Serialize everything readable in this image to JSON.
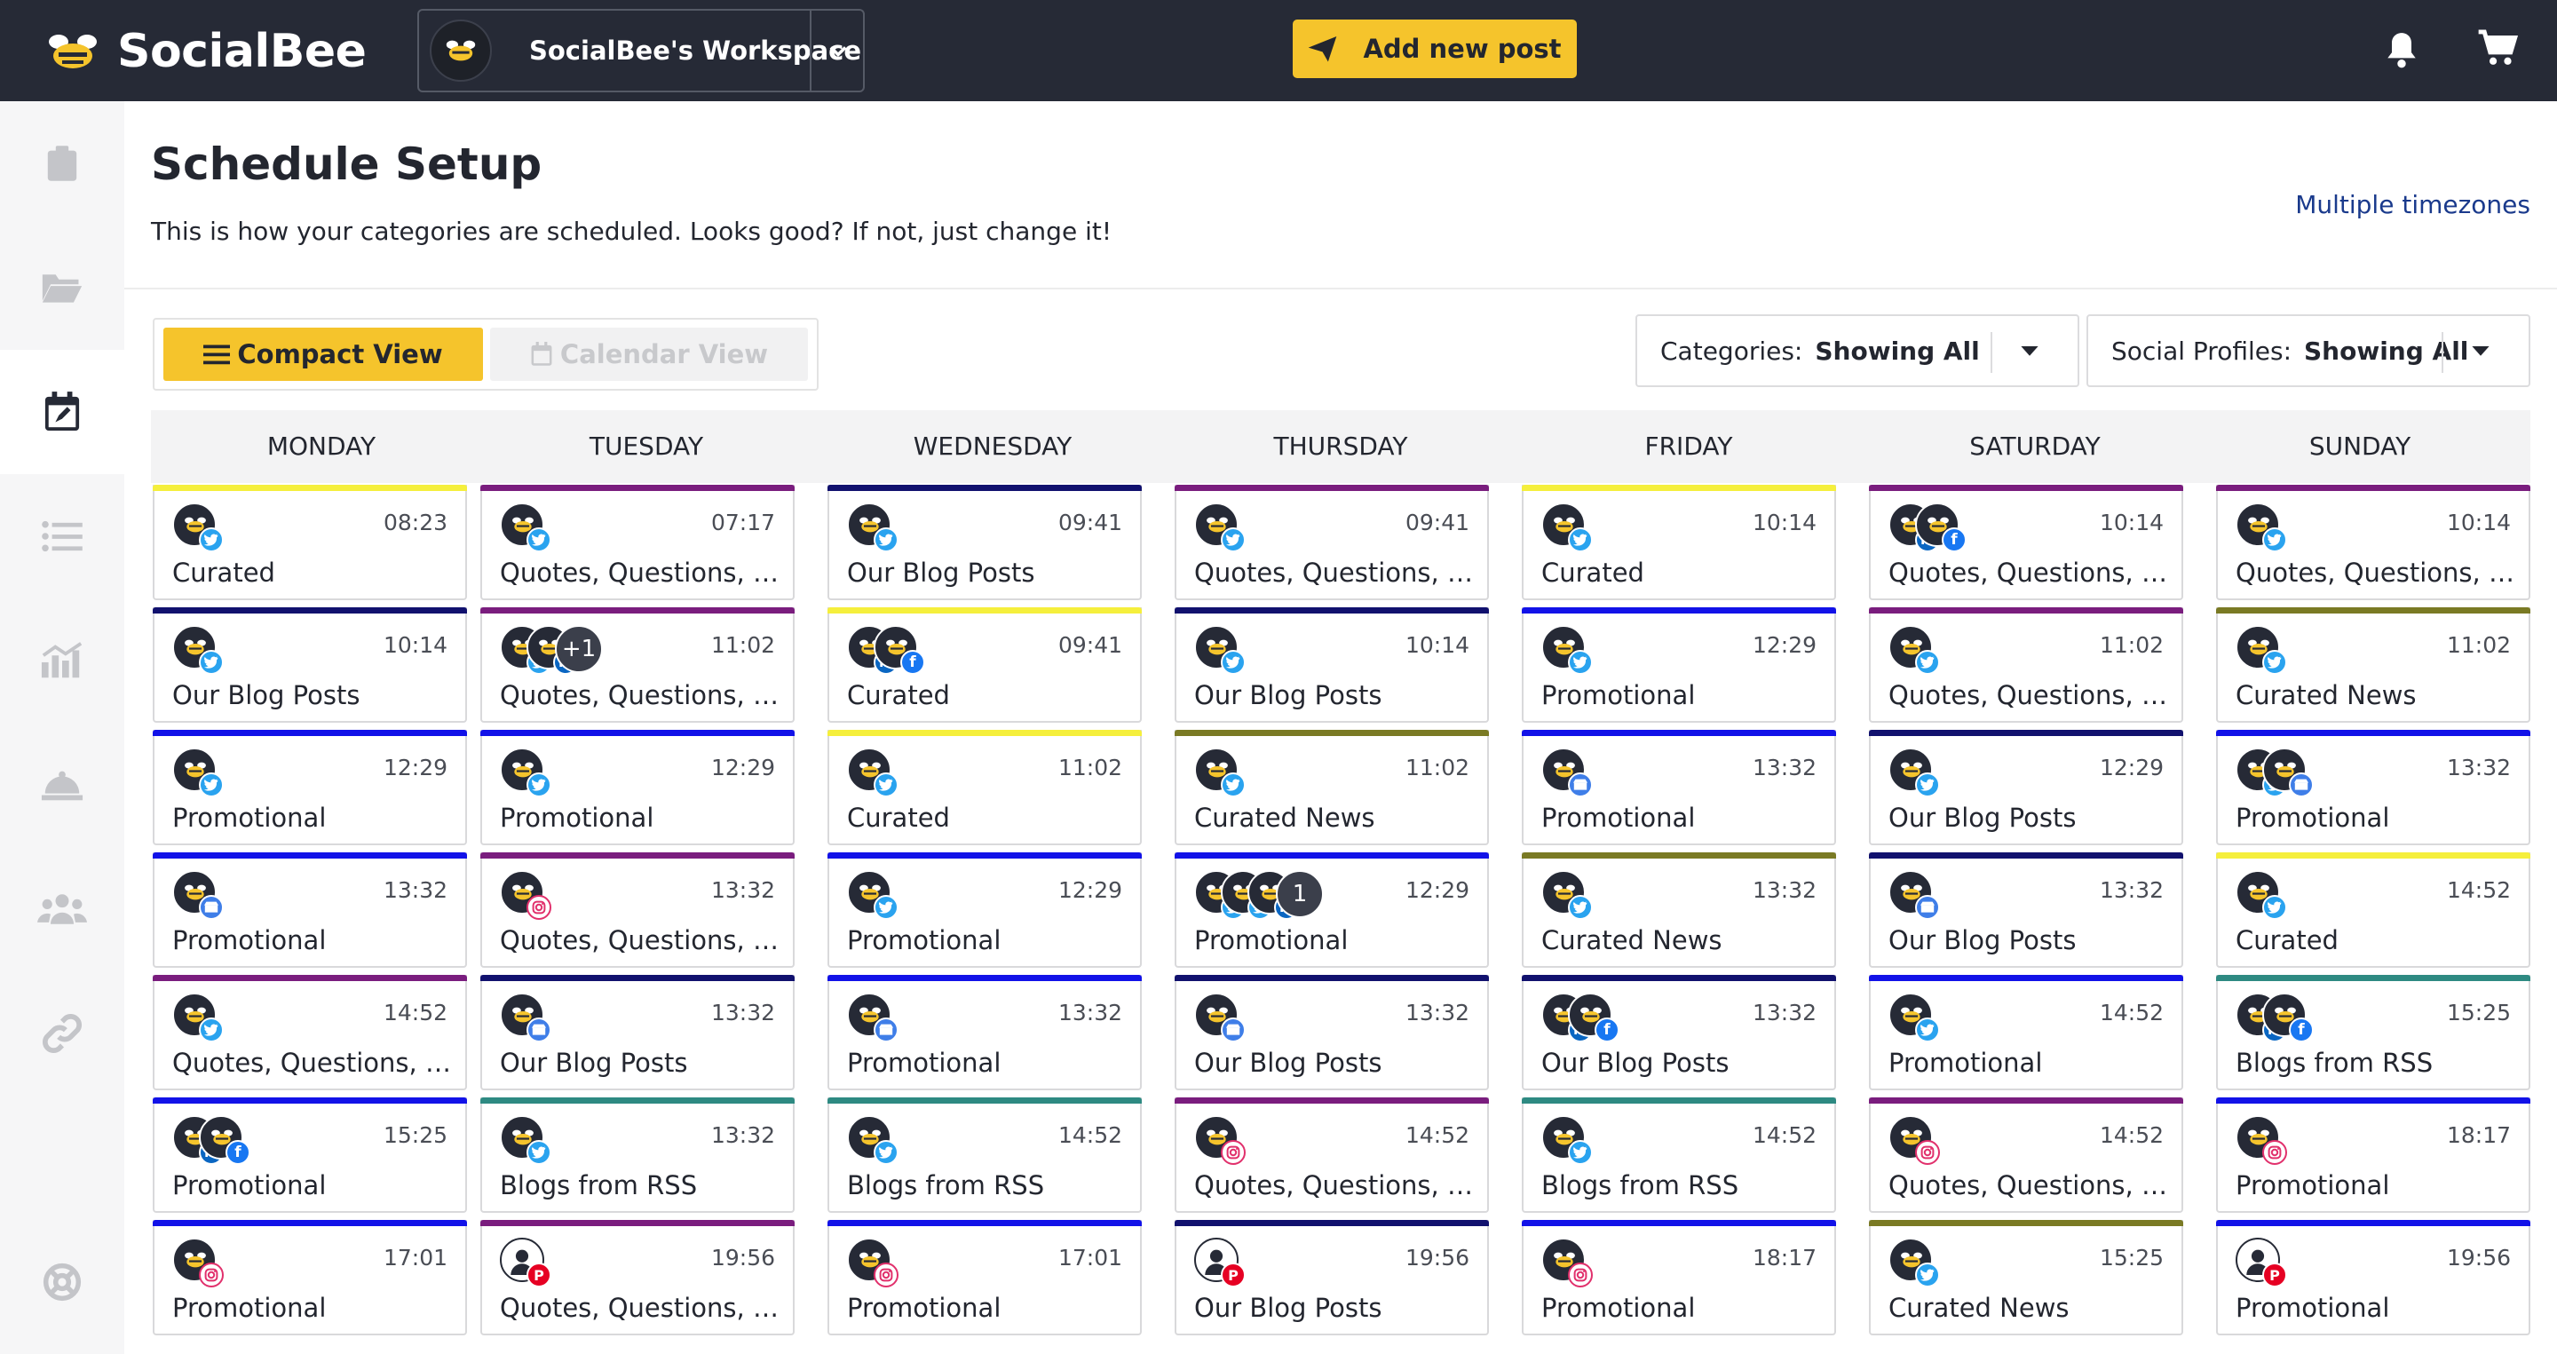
{
  "app": {
    "brand": "SocialBee",
    "workspace": "SocialBee's Workspace",
    "add_post": "Add new post"
  },
  "header": {
    "title": "Schedule Setup",
    "subtitle": "This is how your categories are scheduled. Looks good? If not, just change it!",
    "timezones_link": "Multiple timezones"
  },
  "views": {
    "compact": "Compact View",
    "calendar": "Calendar View"
  },
  "filters": {
    "categories_label": "Categories:",
    "categories_value": "Showing All",
    "profiles_label": "Social Profiles:",
    "profiles_value": "Showing All"
  },
  "sidebar_icons": [
    "clipboard-icon",
    "folder-icon",
    "calendar-edit-icon",
    "list-icon",
    "analytics-icon",
    "concierge-bell-icon",
    "users-icon",
    "link-icon",
    "help-lifebuoy-icon"
  ],
  "colors": {
    "accent": "#f5c42c",
    "topbar": "#262a36",
    "curated": "#f5ef3c",
    "quotes": "#7a1d7e",
    "blog": "#11116e",
    "promotional": "#1212e8",
    "curated_news": "#7a7a24",
    "rss": "#2e8a82"
  },
  "days": [
    "MONDAY",
    "TUESDAY",
    "WEDNESDAY",
    "THURSDAY",
    "FRIDAY",
    "SATURDAY",
    "SUNDAY"
  ],
  "schedule": [
    [
      {
        "time": "08:23",
        "category": "Curated",
        "color": "#f5ef3c",
        "profiles": [
          "twitter"
        ]
      },
      {
        "time": "10:14",
        "category": "Our Blog Posts",
        "color": "#11116e",
        "profiles": [
          "twitter"
        ]
      },
      {
        "time": "12:29",
        "category": "Promotional",
        "color": "#1212e8",
        "profiles": [
          "twitter"
        ]
      },
      {
        "time": "13:32",
        "category": "Promotional",
        "color": "#1212e8",
        "profiles": [
          "gmb"
        ]
      },
      {
        "time": "14:52",
        "category": "Quotes, Questions, and Tips",
        "color": "#7a1d7e",
        "profiles": [
          "twitter"
        ]
      },
      {
        "time": "15:25",
        "category": "Promotional",
        "color": "#1212e8",
        "profiles": [
          "linkedin",
          "facebook"
        ]
      },
      {
        "time": "17:01",
        "category": "Promotional",
        "color": "#1212e8",
        "profiles": [
          "instagram"
        ]
      }
    ],
    [
      {
        "time": "07:17",
        "category": "Quotes, Questions, and Tips",
        "color": "#7a1d7e",
        "profiles": [
          "twitter"
        ]
      },
      {
        "time": "11:02",
        "category": "Quotes, Questions, and Tips",
        "color": "#7a1d7e",
        "profiles": [
          "twitter",
          "linkedin"
        ],
        "more": "+1"
      },
      {
        "time": "12:29",
        "category": "Promotional",
        "color": "#1212e8",
        "profiles": [
          "twitter"
        ]
      },
      {
        "time": "13:32",
        "category": "Quotes, Questions, and Tips",
        "color": "#7a1d7e",
        "profiles": [
          "instagram"
        ]
      },
      {
        "time": "13:32",
        "category": "Our Blog Posts",
        "color": "#11116e",
        "profiles": [
          "gmb"
        ]
      },
      {
        "time": "13:32",
        "category": "Blogs from RSS",
        "color": "#2e8a82",
        "profiles": [
          "twitter"
        ]
      },
      {
        "time": "19:56",
        "category": "Quotes, Questions, and Tips",
        "color": "#7a1d7e",
        "profiles": [
          "pinterest"
        ]
      }
    ],
    [
      {
        "time": "09:41",
        "category": "Our Blog Posts",
        "color": "#11116e",
        "profiles": [
          "twitter"
        ]
      },
      {
        "time": "09:41",
        "category": "Curated",
        "color": "#f5ef3c",
        "profiles": [
          "linkedin",
          "facebook"
        ]
      },
      {
        "time": "11:02",
        "category": "Curated",
        "color": "#f5ef3c",
        "profiles": [
          "twitter"
        ]
      },
      {
        "time": "12:29",
        "category": "Promotional",
        "color": "#1212e8",
        "profiles": [
          "twitter"
        ]
      },
      {
        "time": "13:32",
        "category": "Promotional",
        "color": "#1212e8",
        "profiles": [
          "gmb"
        ]
      },
      {
        "time": "14:52",
        "category": "Blogs from RSS",
        "color": "#2e8a82",
        "profiles": [
          "twitter"
        ]
      },
      {
        "time": "17:01",
        "category": "Promotional",
        "color": "#1212e8",
        "profiles": [
          "instagram"
        ]
      }
    ],
    [
      {
        "time": "09:41",
        "category": "Quotes, Questions, and Tips",
        "color": "#7a1d7e",
        "profiles": [
          "twitter"
        ]
      },
      {
        "time": "10:14",
        "category": "Our Blog Posts",
        "color": "#11116e",
        "profiles": [
          "twitter"
        ]
      },
      {
        "time": "11:02",
        "category": "Curated News",
        "color": "#7a7a24",
        "profiles": [
          "twitter"
        ]
      },
      {
        "time": "12:29",
        "category": "Promotional",
        "color": "#1212e8",
        "profiles": [
          "twitter",
          "twitter",
          "linkedin"
        ],
        "more": "1"
      },
      {
        "time": "13:32",
        "category": "Our Blog Posts",
        "color": "#11116e",
        "profiles": [
          "gmb"
        ]
      },
      {
        "time": "14:52",
        "category": "Quotes, Questions, and Tips",
        "color": "#7a1d7e",
        "profiles": [
          "instagram"
        ]
      },
      {
        "time": "19:56",
        "category": "Our Blog Posts",
        "color": "#11116e",
        "profiles": [
          "pinterest"
        ]
      }
    ],
    [
      {
        "time": "10:14",
        "category": "Curated",
        "color": "#f5ef3c",
        "profiles": [
          "twitter"
        ]
      },
      {
        "time": "12:29",
        "category": "Promotional",
        "color": "#1212e8",
        "profiles": [
          "twitter"
        ]
      },
      {
        "time": "13:32",
        "category": "Promotional",
        "color": "#1212e8",
        "profiles": [
          "gmb"
        ]
      },
      {
        "time": "13:32",
        "category": "Curated News",
        "color": "#7a7a24",
        "profiles": [
          "twitter"
        ]
      },
      {
        "time": "13:32",
        "category": "Our Blog Posts",
        "color": "#11116e",
        "profiles": [
          "linkedin",
          "facebook"
        ]
      },
      {
        "time": "14:52",
        "category": "Blogs from RSS",
        "color": "#2e8a82",
        "profiles": [
          "twitter"
        ]
      },
      {
        "time": "18:17",
        "category": "Promotional",
        "color": "#1212e8",
        "profiles": [
          "instagram"
        ]
      }
    ],
    [
      {
        "time": "10:14",
        "category": "Quotes, Questions, and Tips",
        "color": "#7a1d7e",
        "profiles": [
          "linkedin",
          "facebook"
        ]
      },
      {
        "time": "11:02",
        "category": "Quotes, Questions, and Tips",
        "color": "#7a1d7e",
        "profiles": [
          "twitter"
        ]
      },
      {
        "time": "12:29",
        "category": "Our Blog Posts",
        "color": "#11116e",
        "profiles": [
          "twitter"
        ]
      },
      {
        "time": "13:32",
        "category": "Our Blog Posts",
        "color": "#11116e",
        "profiles": [
          "gmb"
        ]
      },
      {
        "time": "14:52",
        "category": "Promotional",
        "color": "#1212e8",
        "profiles": [
          "twitter"
        ]
      },
      {
        "time": "14:52",
        "category": "Quotes, Questions, and Tips",
        "color": "#7a1d7e",
        "profiles": [
          "instagram"
        ]
      },
      {
        "time": "15:25",
        "category": "Curated News",
        "color": "#7a7a24",
        "profiles": [
          "twitter"
        ]
      }
    ],
    [
      {
        "time": "10:14",
        "category": "Quotes, Questions, and Tips",
        "color": "#7a1d7e",
        "profiles": [
          "twitter"
        ]
      },
      {
        "time": "11:02",
        "category": "Curated News",
        "color": "#7a7a24",
        "profiles": [
          "twitter"
        ]
      },
      {
        "time": "13:32",
        "category": "Promotional",
        "color": "#1212e8",
        "profiles": [
          "twitter",
          "gmb"
        ]
      },
      {
        "time": "14:52",
        "category": "Curated",
        "color": "#f5ef3c",
        "profiles": [
          "twitter"
        ]
      },
      {
        "time": "15:25",
        "category": "Blogs from RSS",
        "color": "#2e8a82",
        "profiles": [
          "linkedin",
          "facebook"
        ]
      },
      {
        "time": "18:17",
        "category": "Promotional",
        "color": "#1212e8",
        "profiles": [
          "instagram"
        ]
      },
      {
        "time": "19:56",
        "category": "Promotional",
        "color": "#1212e8",
        "profiles": [
          "pinterest"
        ]
      }
    ]
  ]
}
